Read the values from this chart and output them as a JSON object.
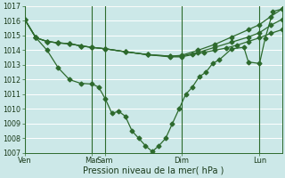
{
  "xlabel": "Pression niveau de la mer( hPa )",
  "bg_color": "#cce8e8",
  "grid_color": "#ffffff",
  "line_color": "#2d6a2d",
  "ylim": [
    1007,
    1017
  ],
  "yticks": [
    1007,
    1008,
    1009,
    1010,
    1011,
    1012,
    1013,
    1014,
    1015,
    1016,
    1017
  ],
  "xtick_labels": [
    "Ven",
    "Mar",
    "Sam",
    "Dim",
    "Lun"
  ],
  "xtick_positions": [
    0,
    60,
    72,
    140,
    210
  ],
  "vline_positions": [
    0,
    60,
    72,
    140,
    210
  ],
  "xlim": [
    0,
    230
  ],
  "series_flat": {
    "x": [
      0,
      10,
      20,
      30,
      40,
      50,
      60,
      72,
      90,
      110,
      130,
      140,
      150,
      160,
      170,
      180,
      190,
      200,
      210,
      220,
      230
    ],
    "y": [
      1016.1,
      1014.85,
      1014.6,
      1014.5,
      1014.45,
      1014.3,
      1014.2,
      1014.1,
      1013.9,
      1013.7,
      1013.55,
      1013.55,
      1013.7,
      1013.85,
      1014.0,
      1014.15,
      1014.35,
      1014.6,
      1014.85,
      1015.15,
      1015.4
    ]
  },
  "series_rising": {
    "x": [
      0,
      10,
      20,
      30,
      40,
      50,
      60,
      72,
      90,
      110,
      130,
      140,
      155,
      170,
      185,
      200,
      210,
      220,
      230
    ],
    "y": [
      1016.1,
      1014.85,
      1014.6,
      1014.5,
      1014.45,
      1014.3,
      1014.2,
      1014.1,
      1013.9,
      1013.7,
      1013.6,
      1013.6,
      1013.85,
      1014.2,
      1014.55,
      1014.9,
      1015.2,
      1015.7,
      1016.1
    ]
  },
  "series_rising2": {
    "x": [
      0,
      10,
      20,
      30,
      40,
      50,
      60,
      72,
      90,
      110,
      130,
      140,
      155,
      170,
      185,
      200,
      210,
      220,
      230
    ],
    "y": [
      1016.1,
      1014.85,
      1014.6,
      1014.5,
      1014.45,
      1014.3,
      1014.2,
      1014.1,
      1013.9,
      1013.7,
      1013.6,
      1013.65,
      1014.0,
      1014.4,
      1014.9,
      1015.4,
      1015.75,
      1016.3,
      1016.8
    ]
  },
  "series_dip": {
    "x": [
      0,
      10,
      20,
      30,
      40,
      50,
      60,
      66,
      72,
      78,
      84,
      90,
      96,
      102,
      108,
      114,
      120,
      126,
      132,
      138,
      144,
      150,
      156,
      162,
      168,
      174,
      185,
      196,
      200,
      210,
      215,
      222,
      230
    ],
    "y": [
      1016.1,
      1014.85,
      1014.0,
      1012.8,
      1012.0,
      1011.75,
      1011.7,
      1011.5,
      1010.7,
      1009.7,
      1009.85,
      1009.5,
      1008.5,
      1008.0,
      1007.5,
      1007.1,
      1007.5,
      1008.0,
      1009.0,
      1010.0,
      1011.0,
      1011.5,
      1012.2,
      1012.5,
      1013.1,
      1013.35,
      1014.1,
      1014.2,
      1013.2,
      1013.1,
      1014.8,
      1016.65,
      1016.8
    ]
  }
}
